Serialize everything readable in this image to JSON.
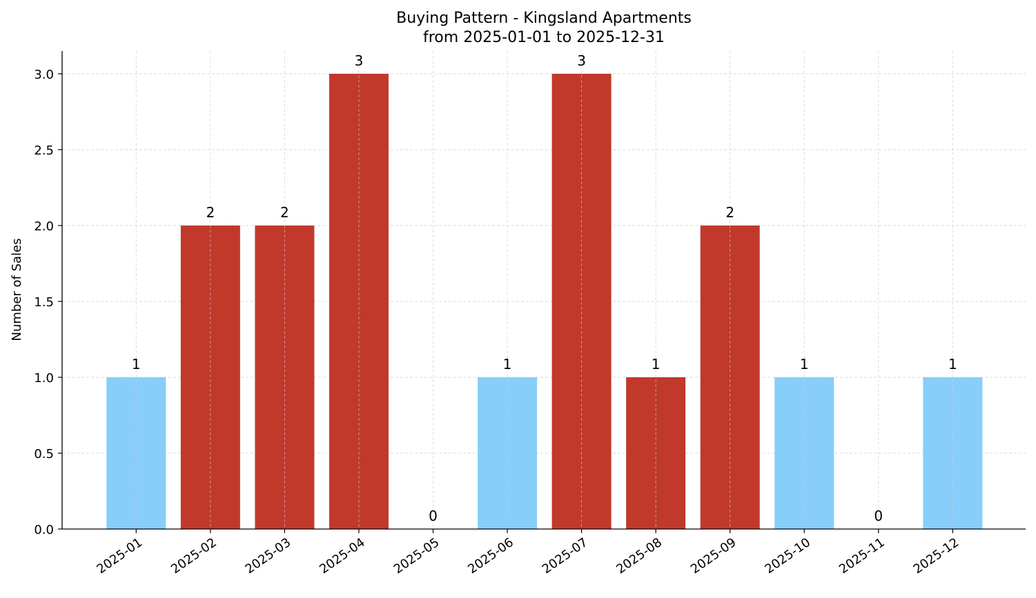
{
  "chart_data": {
    "type": "bar",
    "title": "Buying Pattern - Kingsland Apartments",
    "subtitle": "from 2025-01-01 to 2025-12-31",
    "xlabel": "",
    "ylabel": "Number of Sales",
    "ylim": [
      0,
      3.15
    ],
    "yticks": [
      "0.0",
      "0.5",
      "1.0",
      "1.5",
      "2.0",
      "2.5",
      "3.0"
    ],
    "grid": true,
    "categories": [
      "2025-01",
      "2025-02",
      "2025-03",
      "2025-04",
      "2025-05",
      "2025-06",
      "2025-07",
      "2025-08",
      "2025-09",
      "2025-10",
      "2025-11",
      "2025-12"
    ],
    "values": [
      1,
      2,
      2,
      3,
      0,
      1,
      3,
      1,
      2,
      1,
      0,
      1
    ],
    "bar_colors": [
      "#87CEFA",
      "#C0392B",
      "#C0392B",
      "#C0392B",
      "#87CEFA",
      "#87CEFA",
      "#C0392B",
      "#C0392B",
      "#C0392B",
      "#87CEFA",
      "#87CEFA",
      "#87CEFA"
    ],
    "data_labels": [
      "1",
      "2",
      "2",
      "3",
      "0",
      "1",
      "3",
      "1",
      "2",
      "1",
      "0",
      "1"
    ]
  }
}
